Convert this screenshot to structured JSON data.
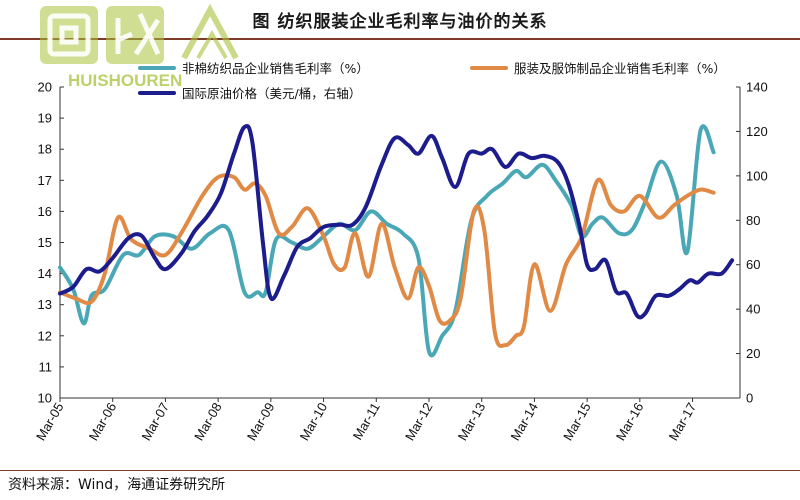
{
  "title": "图  纺织服装企业毛利率与油价的关系",
  "source": "资料来源：Wind，海通证券研究所",
  "watermark": {
    "cn": "回收",
    "en": "HUISHOUREN"
  },
  "chart_data": {
    "type": "line",
    "left_axis": {
      "ylim": [
        10,
        20
      ],
      "ticks": [
        10,
        11,
        12,
        13,
        14,
        15,
        16,
        17,
        18,
        19,
        20
      ]
    },
    "right_axis": {
      "ylim": [
        0,
        140
      ],
      "ticks": [
        0,
        20,
        40,
        60,
        80,
        100,
        120,
        140
      ]
    },
    "x_tick_labels": [
      "Mar-05",
      "Mar-06",
      "Mar-07",
      "Mar-08",
      "Mar-09",
      "Mar-10",
      "Mar-11",
      "Mar-12",
      "Mar-13",
      "Mar-14",
      "Mar-15",
      "Mar-16",
      "Mar-17"
    ],
    "grid": false,
    "legend_position": "top",
    "series": [
      {
        "name": "非棉纺织品企业销售毛利率（%）",
        "axis": "left",
        "color": "#4aa8b6",
        "points": [
          [
            2005.0,
            14.2
          ],
          [
            2005.25,
            13.5
          ],
          [
            2005.45,
            12.4
          ],
          [
            2005.6,
            13.3
          ],
          [
            2005.85,
            13.5
          ],
          [
            2006.2,
            14.6
          ],
          [
            2006.5,
            14.6
          ],
          [
            2006.8,
            15.2
          ],
          [
            2007.15,
            15.2
          ],
          [
            2007.5,
            14.8
          ],
          [
            2007.85,
            15.3
          ],
          [
            2008.2,
            15.4
          ],
          [
            2008.5,
            13.4
          ],
          [
            2008.75,
            13.4
          ],
          [
            2008.9,
            13.4
          ],
          [
            2009.1,
            15.1
          ],
          [
            2009.4,
            15.0
          ],
          [
            2009.7,
            14.8
          ],
          [
            2010.0,
            15.2
          ],
          [
            2010.3,
            15.6
          ],
          [
            2010.6,
            15.4
          ],
          [
            2010.9,
            16.0
          ],
          [
            2011.2,
            15.6
          ],
          [
            2011.5,
            15.3
          ],
          [
            2011.8,
            14.5
          ],
          [
            2012.0,
            11.5
          ],
          [
            2012.25,
            12.0
          ],
          [
            2012.5,
            12.8
          ],
          [
            2012.8,
            15.7
          ],
          [
            2013.1,
            16.5
          ],
          [
            2013.4,
            16.9
          ],
          [
            2013.65,
            17.3
          ],
          [
            2013.85,
            17.1
          ],
          [
            2014.15,
            17.5
          ],
          [
            2014.4,
            17.0
          ],
          [
            2014.7,
            16.2
          ],
          [
            2014.9,
            15.2
          ],
          [
            2015.1,
            15.6
          ],
          [
            2015.3,
            15.8
          ],
          [
            2015.6,
            15.3
          ],
          [
            2015.85,
            15.4
          ],
          [
            2016.1,
            16.3
          ],
          [
            2016.4,
            17.6
          ],
          [
            2016.7,
            16.5
          ],
          [
            2016.9,
            14.7
          ],
          [
            2017.15,
            18.6
          ],
          [
            2017.4,
            17.9
          ]
        ]
      },
      {
        "name": "服装及服饰制品企业销售毛利率（%）",
        "axis": "left",
        "color": "#e08a45",
        "points": [
          [
            2005.0,
            13.4
          ],
          [
            2005.3,
            13.2
          ],
          [
            2005.6,
            13.1
          ],
          [
            2005.85,
            14.0
          ],
          [
            2006.1,
            15.8
          ],
          [
            2006.35,
            15.1
          ],
          [
            2006.7,
            14.8
          ],
          [
            2007.0,
            14.6
          ],
          [
            2007.3,
            15.3
          ],
          [
            2007.7,
            16.5
          ],
          [
            2008.0,
            17.1
          ],
          [
            2008.3,
            17.1
          ],
          [
            2008.5,
            16.7
          ],
          [
            2008.7,
            16.9
          ],
          [
            2008.9,
            16.5
          ],
          [
            2009.15,
            15.3
          ],
          [
            2009.4,
            15.5
          ],
          [
            2009.7,
            16.1
          ],
          [
            2010.0,
            15.2
          ],
          [
            2010.2,
            14.3
          ],
          [
            2010.4,
            14.2
          ],
          [
            2010.6,
            15.3
          ],
          [
            2010.85,
            13.9
          ],
          [
            2011.1,
            15.6
          ],
          [
            2011.35,
            14.2
          ],
          [
            2011.6,
            13.2
          ],
          [
            2011.8,
            14.2
          ],
          [
            2012.0,
            13.6
          ],
          [
            2012.2,
            12.5
          ],
          [
            2012.4,
            12.5
          ],
          [
            2012.6,
            13.2
          ],
          [
            2012.85,
            16.0
          ],
          [
            2013.05,
            15.4
          ],
          [
            2013.25,
            12.1
          ],
          [
            2013.45,
            11.7
          ],
          [
            2013.65,
            12.0
          ],
          [
            2013.8,
            12.3
          ],
          [
            2014.0,
            14.3
          ],
          [
            2014.3,
            12.8
          ],
          [
            2014.6,
            14.3
          ],
          [
            2014.9,
            15.2
          ],
          [
            2015.2,
            17.0
          ],
          [
            2015.45,
            16.2
          ],
          [
            2015.7,
            16.0
          ],
          [
            2016.0,
            16.5
          ],
          [
            2016.35,
            15.8
          ],
          [
            2016.65,
            16.2
          ],
          [
            2016.9,
            16.5
          ],
          [
            2017.15,
            16.7
          ],
          [
            2017.4,
            16.6
          ]
        ]
      },
      {
        "name": "国际原油价格（美元/桶，右轴）",
        "axis": "right",
        "color": "#1c1c8c",
        "points": [
          [
            2005.0,
            47
          ],
          [
            2005.25,
            50
          ],
          [
            2005.5,
            58
          ],
          [
            2005.75,
            57
          ],
          [
            2006.0,
            63
          ],
          [
            2006.3,
            72
          ],
          [
            2006.55,
            73
          ],
          [
            2006.8,
            63
          ],
          [
            2007.0,
            58
          ],
          [
            2007.3,
            65
          ],
          [
            2007.55,
            75
          ],
          [
            2007.8,
            82
          ],
          [
            2008.05,
            92
          ],
          [
            2008.3,
            110
          ],
          [
            2008.5,
            122
          ],
          [
            2008.65,
            115
          ],
          [
            2008.85,
            70
          ],
          [
            2009.0,
            45
          ],
          [
            2009.25,
            55
          ],
          [
            2009.5,
            68
          ],
          [
            2009.75,
            72
          ],
          [
            2010.0,
            77
          ],
          [
            2010.3,
            78
          ],
          [
            2010.55,
            78
          ],
          [
            2010.8,
            86
          ],
          [
            2011.1,
            105
          ],
          [
            2011.35,
            117
          ],
          [
            2011.6,
            114
          ],
          [
            2011.8,
            110
          ],
          [
            2012.05,
            118
          ],
          [
            2012.25,
            108
          ],
          [
            2012.5,
            95
          ],
          [
            2012.75,
            110
          ],
          [
            2013.0,
            110
          ],
          [
            2013.2,
            112
          ],
          [
            2013.45,
            104
          ],
          [
            2013.7,
            110
          ],
          [
            2013.95,
            108
          ],
          [
            2014.2,
            109
          ],
          [
            2014.45,
            106
          ],
          [
            2014.65,
            96
          ],
          [
            2014.85,
            78
          ],
          [
            2015.0,
            60
          ],
          [
            2015.15,
            58
          ],
          [
            2015.35,
            62
          ],
          [
            2015.55,
            48
          ],
          [
            2015.75,
            47
          ],
          [
            2015.95,
            37
          ],
          [
            2016.1,
            38
          ],
          [
            2016.3,
            46
          ],
          [
            2016.55,
            46
          ],
          [
            2016.75,
            49
          ],
          [
            2016.95,
            53
          ],
          [
            2017.1,
            52
          ],
          [
            2017.3,
            56
          ],
          [
            2017.55,
            56
          ],
          [
            2017.75,
            62
          ]
        ]
      }
    ]
  }
}
